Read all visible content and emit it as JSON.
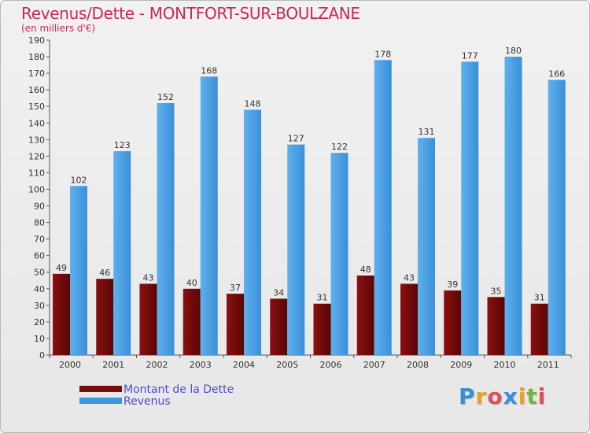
{
  "chart_data": {
    "type": "bar",
    "title": "Revenus/Dette - MONTFORT-SUR-BOULZANE",
    "subtitle": "(en milliers d'€)",
    "xlabel": "",
    "ylabel": "",
    "ylim": [
      0,
      190
    ],
    "yticks": [
      0,
      10,
      20,
      30,
      40,
      50,
      60,
      70,
      80,
      90,
      100,
      110,
      120,
      130,
      140,
      150,
      160,
      170,
      180,
      190
    ],
    "grid": false,
    "categories": [
      "2000",
      "2001",
      "2002",
      "2003",
      "2004",
      "2005",
      "2006",
      "2007",
      "2008",
      "2009",
      "2010",
      "2011"
    ],
    "series": [
      {
        "name": "Montant de la Dette",
        "color": "#7a0d0d",
        "values": [
          49,
          46,
          43,
          40,
          37,
          34,
          31,
          48,
          43,
          39,
          35,
          31
        ]
      },
      {
        "name": "Revenus",
        "color": "#3c97dc",
        "values": [
          102,
          123,
          152,
          168,
          148,
          127,
          122,
          178,
          131,
          177,
          180,
          166
        ]
      }
    ],
    "legend_position": "bottom-left"
  },
  "logo": {
    "letters": [
      "P",
      "r",
      "o",
      "x",
      "i",
      "t",
      "i"
    ],
    "colors": [
      "#3a8fd8",
      "#f0a020",
      "#e0505a",
      "#3a8fd8",
      "#f0a020",
      "#6cb83c",
      "#e0505a"
    ]
  }
}
